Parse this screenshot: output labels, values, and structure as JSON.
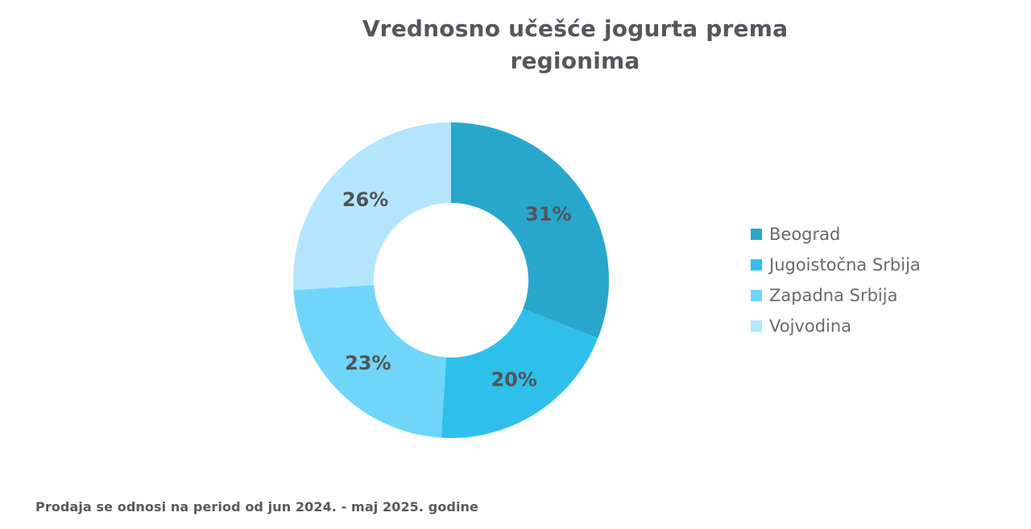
{
  "title": "Vrednosno učešće jogurta prema regionima",
  "footnote": "Prodaja se odnosi na period od jun 2024. - maj 2025. godine",
  "colors": {
    "background": "#FFFFFF",
    "title_text": "#54575C",
    "slice_label_text": "#515458",
    "legend_text": "#6A6A6A",
    "footnote_text": "#595959"
  },
  "chart_data": {
    "type": "pie",
    "subtype": "donut",
    "title": "Vrednosno učešće jogurta prema regionima",
    "legend_position": "right",
    "start_angle_deg": 0,
    "direction": "clockwise",
    "segments": [
      {
        "label": "Beograd",
        "value": 31,
        "display": "31%",
        "color": "#29A6CB"
      },
      {
        "label": "Jugoistočna Srbija",
        "value": 20,
        "display": "20%",
        "color": "#2EC0EA"
      },
      {
        "label": "Zapadna Srbija",
        "value": 23,
        "display": "23%",
        "color": "#6FD6FA"
      },
      {
        "label": "Vojvodina",
        "value": 26,
        "display": "26%",
        "color": "#B3E6FC"
      }
    ]
  }
}
